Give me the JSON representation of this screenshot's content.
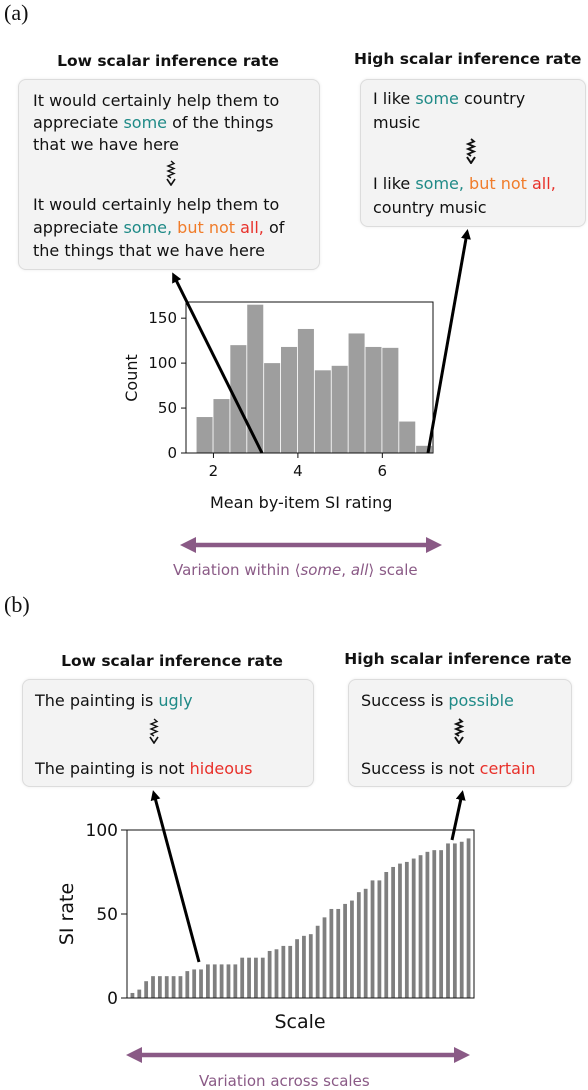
{
  "panel_a": {
    "label": "(a)",
    "low_title": "Low scalar inference rate",
    "high_title": "High scalar inference rate",
    "low_box": {
      "line1": "It would certainly help them to",
      "line2_pre": "appreciate ",
      "line2_some": "some",
      "line2_post": " of the things",
      "line3": "that we have here",
      "line4": "It would certainly help them to",
      "line5_pre": "appreciate ",
      "line5_some": "some,",
      "line5_butnot": " but not ",
      "line5_all": "all,",
      "line5_post": " of",
      "line6": "the things that we have here"
    },
    "high_box": {
      "line1_pre": "I like ",
      "line1_some": "some",
      "line1_post": " country",
      "line2": "music",
      "line3_pre": "I like ",
      "line3_some": "some,",
      "line3_butnot": " but not ",
      "line3_all": "all,",
      "line4": "country music"
    },
    "caption": {
      "pre": "Variation within ⟨",
      "some": "some",
      "comma": ", ",
      "all": "all",
      "post": "⟩ scale"
    }
  },
  "panel_b": {
    "label": "(b)",
    "low_title": "Low scalar inference rate",
    "high_title": "High scalar inference rate",
    "low_box": {
      "line1_pre": "The painting is ",
      "line1_word": "ugly",
      "line2_pre": "The painting is not ",
      "line2_word": "hideous"
    },
    "high_box": {
      "line1_pre": "Success is ",
      "line1_word": "possible",
      "line2_pre": "Success is not ",
      "line2_word": "certain"
    },
    "caption": "Variation across scales"
  },
  "colors": {
    "bar": "#9e9e9e",
    "bar_b": "#7f7f7f",
    "arrow": "#8a5a86",
    "teal": "#1f8a87",
    "orange": "#f07c2a",
    "red": "#e8302a"
  },
  "chart_data": [
    {
      "type": "bar",
      "xlabel": "Mean by-item SI rating",
      "ylabel": "Count",
      "xlim": [
        1.35,
        7.2
      ],
      "ylim": [
        0,
        168
      ],
      "xticks": [
        2,
        4,
        6
      ],
      "yticks": [
        0,
        50,
        100,
        150
      ],
      "bin_width": 0.38,
      "bin_starts": [
        1.6,
        2.0,
        2.4,
        2.8,
        3.2,
        3.6,
        4.0,
        4.4,
        4.8,
        5.2,
        5.6,
        6.0,
        6.4,
        6.8
      ],
      "values": [
        40,
        60,
        120,
        165,
        100,
        118,
        138,
        92,
        97,
        133,
        118,
        117,
        35,
        8
      ]
    },
    {
      "type": "bar",
      "xlabel": "Scale",
      "ylabel": "SI rate",
      "ylim": [
        0,
        100
      ],
      "yticks": [
        0,
        50,
        100
      ],
      "values": [
        3,
        5,
        10,
        13,
        13,
        13,
        13,
        13,
        16,
        17,
        17,
        20,
        20,
        20,
        20,
        20,
        24,
        24,
        24,
        24,
        28,
        29,
        31,
        31,
        35,
        37,
        38,
        43,
        48,
        53,
        53,
        56,
        58,
        63,
        65,
        70,
        70,
        75,
        78,
        80,
        81,
        83,
        85,
        87,
        88,
        88,
        92,
        92,
        93,
        95
      ]
    }
  ]
}
